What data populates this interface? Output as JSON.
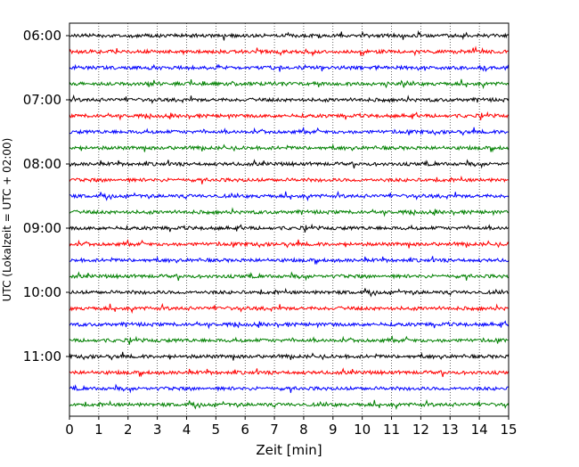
{
  "chart_data": {
    "type": "line",
    "title": "",
    "xlabel": "Zeit  [min]",
    "ylabel": "UTC (Lokalzeit = UTC + 02:00)",
    "xlim": [
      0,
      15
    ],
    "x_ticks": [
      0,
      1,
      2,
      3,
      4,
      5,
      6,
      7,
      8,
      9,
      10,
      11,
      12,
      13,
      14,
      15
    ],
    "x_tick_labels": [
      "0",
      "1",
      "2",
      "3",
      "4",
      "5",
      "6",
      "7",
      "8",
      "9",
      "10",
      "11",
      "12",
      "13",
      "14",
      "15"
    ],
    "y_ticks": [
      "06:00",
      "07:00",
      "08:00",
      "09:00",
      "10:00",
      "11:00"
    ],
    "ylim": [
      "06:00",
      "11:45"
    ],
    "ylim_inverted": true,
    "trace_interval_minutes": 15,
    "grid": "vertical dotted at each minute",
    "legend": "none",
    "color_cycle": [
      "#000000",
      "#ff0000",
      "#0000ff",
      "#008000"
    ],
    "series": [
      {
        "start": "06:00",
        "color": "#000000"
      },
      {
        "start": "06:15",
        "color": "#ff0000"
      },
      {
        "start": "06:30",
        "color": "#0000ff"
      },
      {
        "start": "06:45",
        "color": "#008000"
      },
      {
        "start": "07:00",
        "color": "#000000"
      },
      {
        "start": "07:15",
        "color": "#ff0000"
      },
      {
        "start": "07:30",
        "color": "#0000ff"
      },
      {
        "start": "07:45",
        "color": "#008000"
      },
      {
        "start": "08:00",
        "color": "#000000"
      },
      {
        "start": "08:15",
        "color": "#ff0000"
      },
      {
        "start": "08:30",
        "color": "#0000ff"
      },
      {
        "start": "08:45",
        "color": "#008000"
      },
      {
        "start": "09:00",
        "color": "#000000"
      },
      {
        "start": "09:15",
        "color": "#ff0000"
      },
      {
        "start": "09:30",
        "color": "#0000ff"
      },
      {
        "start": "09:45",
        "color": "#008000"
      },
      {
        "start": "10:00",
        "color": "#000000"
      },
      {
        "start": "10:15",
        "color": "#ff0000"
      },
      {
        "start": "10:30",
        "color": "#0000ff"
      },
      {
        "start": "10:45",
        "color": "#008000"
      },
      {
        "start": "11:00",
        "color": "#000000"
      },
      {
        "start": "11:15",
        "color": "#ff0000"
      },
      {
        "start": "11:30",
        "color": "#0000ff"
      },
      {
        "start": "11:45",
        "color": "#008000"
      }
    ]
  }
}
